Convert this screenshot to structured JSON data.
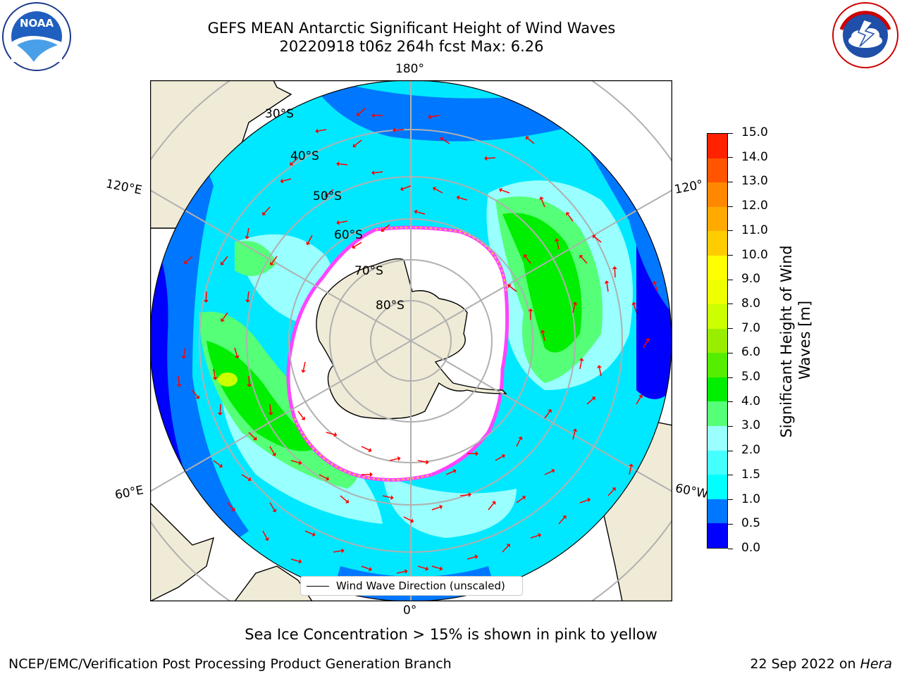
{
  "header": {
    "title_line1": "GEFS MEAN Antarctic Significant Height of Wind Waves",
    "title_line2": "20220918 t06z 264h fcst   Max: 6.26"
  },
  "logos": {
    "noaa": "NOAA",
    "noaa_ring": "NATIONAL OCEANIC AND ATMOSPHERIC ADMINISTRATION · U.S. DEPARTMENT OF COMMERCE",
    "nws_ring": "NATIONAL WEATHER SERVICE"
  },
  "map": {
    "lon_labels": {
      "top": "180°",
      "bottom": "0°",
      "upper_left": "120°E",
      "upper_right": "120°",
      "lower_left": "60°E",
      "lower_right": "60°W"
    },
    "lat_labels": [
      "30°S",
      "40°S",
      "50°S",
      "60°S",
      "70°S",
      "80°S"
    ],
    "legend_label": "Wind Wave Direction (unscaled)",
    "colors": {
      "land": "#efebd6",
      "ice": "#ffffff",
      "ice_edge": "#ff44ff",
      "arrow": "#ff0000",
      "grid": "#b0b0b0"
    }
  },
  "colorbar": {
    "label_line1": "Significant Height of Wind",
    "label_line2": "Waves [m]",
    "ticks": [
      "15.0",
      "14.0",
      "13.0",
      "12.0",
      "11.0",
      "10.0",
      "9.0",
      "8.0",
      "7.0",
      "6.0",
      "5.0",
      "4.0",
      "3.0",
      "2.0",
      "1.5",
      "1.0",
      "0.5",
      "0.0"
    ],
    "colors_bottom_to_top": [
      "#0000ff",
      "#0077ff",
      "#00ffff",
      "#44ffff",
      "#99ffff",
      "#55ff77",
      "#00ee00",
      "#55ee00",
      "#99ee00",
      "#ccff00",
      "#eeff00",
      "#ffff00",
      "#ffcc00",
      "#ffaa00",
      "#ff8800",
      "#ff5500",
      "#ff2200"
    ]
  },
  "footer": {
    "note": "Sea Ice Concentration > 15% is shown in pink to yellow",
    "left": "NCEP/EMC/Verification Post Processing Product Generation Branch",
    "right_date": "22 Sep 2022 on ",
    "right_host": "Hera"
  }
}
